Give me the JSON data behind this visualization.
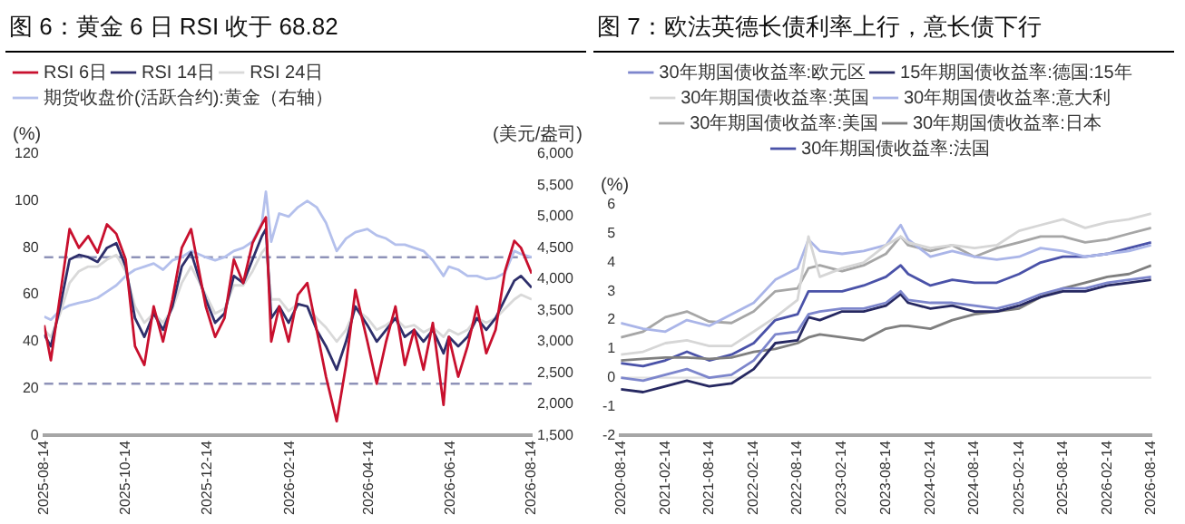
{
  "chart_data": [
    {
      "type": "line",
      "title": "图 6：黄金 6 日 RSI 收于 68.82",
      "ylabel": "(%)",
      "y2label": "(美元/盎司)",
      "x": [
        "2025-08-14",
        "2025-08-19",
        "2025-08-26",
        "2025-09-02",
        "2025-09-09",
        "2025-09-16",
        "2025-09-23",
        "2025-09-30",
        "2025-10-07",
        "2025-10-14",
        "2025-10-21",
        "2025-10-28",
        "2025-11-04",
        "2025-11-11",
        "2025-11-18",
        "2025-11-25",
        "2025-12-02",
        "2025-12-13",
        "2025-12-20",
        "2025-12-27",
        "2026-01-03",
        "2026-01-10",
        "2026-01-17",
        "2026-01-24",
        "2026-01-27",
        "2026-01-31",
        "2026-02-06",
        "2026-02-13",
        "2026-02-20",
        "2026-02-27",
        "2026-03-06",
        "2026-03-13",
        "2026-03-21",
        "2026-03-28",
        "2026-04-04",
        "2026-04-13",
        "2026-04-20",
        "2026-04-27",
        "2026-05-04",
        "2026-05-11",
        "2026-05-18",
        "2026-05-25",
        "2026-06-01",
        "2026-06-09",
        "2026-06-13",
        "2026-06-20",
        "2026-06-27",
        "2026-07-04",
        "2026-07-11",
        "2026-07-18",
        "2026-07-25",
        "2026-08-01",
        "2026-08-06",
        "2026-08-14"
      ],
      "series": [
        {
          "name": "RSI 6日",
          "color": "#c8102e",
          "values": [
            47,
            32,
            60,
            88,
            80,
            85,
            78,
            90,
            86,
            75,
            38,
            30,
            55,
            40,
            58,
            80,
            88,
            55,
            42,
            50,
            75,
            65,
            82,
            90,
            93,
            40,
            55,
            40,
            60,
            65,
            45,
            25,
            6,
            30,
            62,
            40,
            22,
            40,
            55,
            30,
            45,
            28,
            48,
            13,
            42,
            25,
            38,
            55,
            35,
            45,
            70,
            83,
            80,
            69
          ]
        },
        {
          "name": "RSI 14日",
          "color": "#2e2f6b",
          "values": [
            43,
            38,
            55,
            75,
            77,
            76,
            74,
            80,
            82,
            72,
            50,
            42,
            52,
            45,
            55,
            72,
            78,
            58,
            48,
            52,
            68,
            65,
            75,
            85,
            88,
            50,
            55,
            48,
            56,
            55,
            45,
            38,
            28,
            40,
            55,
            47,
            40,
            45,
            50,
            42,
            45,
            40,
            45,
            35,
            42,
            38,
            42,
            50,
            45,
            50,
            58,
            66,
            68,
            63
          ]
        },
        {
          "name": "RSI 24日",
          "color": "#d9d9d9",
          "values": [
            45,
            42,
            52,
            65,
            70,
            72,
            72,
            75,
            77,
            70,
            55,
            48,
            52,
            48,
            54,
            65,
            72,
            60,
            52,
            54,
            64,
            64,
            70,
            78,
            80,
            58,
            58,
            53,
            56,
            55,
            50,
            46,
            40,
            45,
            54,
            50,
            45,
            47,
            50,
            46,
            47,
            44,
            46,
            42,
            45,
            43,
            45,
            50,
            48,
            50,
            54,
            58,
            60,
            58
          ]
        },
        {
          "name": "期货收盘价(活跃合约):黄金（右轴）",
          "color": "#b4c0ec",
          "axis": "y2",
          "values": [
            3400,
            3350,
            3500,
            3580,
            3620,
            3650,
            3700,
            3800,
            3900,
            4050,
            4150,
            4200,
            4250,
            4150,
            4300,
            4350,
            4450,
            4350,
            4300,
            4350,
            4450,
            4500,
            4600,
            4900,
            5400,
            4600,
            5050,
            5000,
            5150,
            5250,
            5150,
            4900,
            4450,
            4650,
            4750,
            4800,
            4700,
            4650,
            4550,
            4550,
            4500,
            4450,
            4300,
            4050,
            4200,
            4150,
            4050,
            4050,
            4000,
            4020,
            4100,
            4450,
            4400,
            4350
          ]
        }
      ],
      "xlim": [
        "2025-08-14",
        "2026-08-14"
      ],
      "xticks": [
        "2025-08-14",
        "2025-10-14",
        "2025-12-14",
        "2026-02-14",
        "2026-04-14",
        "2026-06-14",
        "2026-08-14"
      ],
      "ylim": [
        0,
        120
      ],
      "yticks": [
        0,
        20,
        40,
        60,
        80,
        100,
        120
      ],
      "y2lim": [
        1500,
        6000
      ],
      "y2ticks": [
        {
          "value": 1500,
          "label": "1,500"
        },
        {
          "value": 2000,
          "label": "2,000"
        },
        {
          "value": 2500,
          "label": "2,500"
        },
        {
          "value": 3000,
          "label": "3,000"
        },
        {
          "value": 3500,
          "label": "3,500"
        },
        {
          "value": 4000,
          "label": "4,000"
        },
        {
          "value": 4500,
          "label": "4,500"
        },
        {
          "value": 5000,
          "label": "5,000"
        },
        {
          "value": 5500,
          "label": "5,500"
        },
        {
          "value": 6000,
          "label": "6,000"
        }
      ],
      "ref_lines": [
        {
          "axis": "y",
          "value": 76,
          "color": "#8e92b8",
          "line_style": "dashed"
        },
        {
          "axis": "y",
          "value": 22,
          "color": "#8e92b8",
          "line_style": "dashed"
        }
      ],
      "grid": false,
      "legend": "top left",
      "marker": "none",
      "line_style": "solid"
    },
    {
      "type": "line",
      "title": "图 7：欧法英德长债利率上行，意长债下行",
      "ylabel": "(%)",
      "x": [
        "2020-08-14",
        "2020-11-14",
        "2021-02-14",
        "2021-05-14",
        "2021-08-14",
        "2021-11-14",
        "2022-02-14",
        "2022-05-14",
        "2022-08-14",
        "2022-09-28",
        "2022-11-14",
        "2023-02-14",
        "2023-05-14",
        "2023-08-14",
        "2023-10-14",
        "2023-11-14",
        "2024-02-14",
        "2024-05-14",
        "2024-08-14",
        "2024-11-14",
        "2025-02-14",
        "2025-05-14",
        "2025-08-14",
        "2025-11-14",
        "2026-02-14",
        "2026-05-14",
        "2026-08-14"
      ],
      "series": [
        {
          "name": "30年期国债收益率:欧元区",
          "color": "#7d86cc",
          "values": [
            0.0,
            -0.1,
            0.1,
            0.3,
            0.0,
            0.1,
            0.6,
            1.5,
            1.6,
            2.2,
            2.3,
            2.4,
            2.4,
            2.6,
            3.0,
            2.7,
            2.6,
            2.6,
            2.5,
            2.4,
            2.6,
            2.9,
            3.1,
            3.1,
            3.3,
            3.4,
            3.5
          ]
        },
        {
          "name": "15年期国债收益率:德国:15年",
          "color": "#262861",
          "values": [
            -0.4,
            -0.5,
            -0.3,
            -0.1,
            -0.3,
            -0.2,
            0.3,
            1.2,
            1.3,
            2.1,
            2.0,
            2.3,
            2.3,
            2.5,
            2.9,
            2.6,
            2.4,
            2.5,
            2.3,
            2.3,
            2.5,
            2.8,
            3.0,
            3.0,
            3.2,
            3.3,
            3.4
          ]
        },
        {
          "name": "30年期国债收益率:英国",
          "color": "#d6d6d6",
          "values": [
            0.8,
            0.9,
            1.2,
            1.3,
            1.1,
            1.1,
            1.6,
            2.1,
            2.7,
            4.9,
            3.5,
            3.8,
            4.0,
            4.6,
            4.9,
            4.7,
            4.5,
            4.6,
            4.5,
            4.6,
            5.1,
            5.3,
            5.5,
            5.2,
            5.4,
            5.5,
            5.7
          ]
        },
        {
          "name": "30年期国债收益率:意大利",
          "color": "#aab5e8",
          "values": [
            1.9,
            1.7,
            1.6,
            2.0,
            1.8,
            2.2,
            2.6,
            3.4,
            3.8,
            4.8,
            4.4,
            4.3,
            4.4,
            4.6,
            5.3,
            4.8,
            4.2,
            4.4,
            4.2,
            4.1,
            4.2,
            4.5,
            4.4,
            4.2,
            4.3,
            4.4,
            4.6
          ]
        },
        {
          "name": "30年期国债收益率:美国",
          "color": "#a6a6a6",
          "values": [
            1.4,
            1.6,
            2.1,
            2.3,
            1.95,
            1.9,
            2.3,
            3.0,
            3.1,
            3.8,
            3.9,
            3.7,
            3.9,
            4.3,
            4.9,
            4.6,
            4.4,
            4.6,
            4.2,
            4.5,
            4.7,
            4.9,
            4.9,
            4.7,
            4.8,
            5.0,
            5.2
          ]
        },
        {
          "name": "30年期国债收益率:日本",
          "color": "#7f7f7f",
          "values": [
            0.6,
            0.65,
            0.7,
            0.7,
            0.65,
            0.7,
            0.9,
            1.0,
            1.2,
            1.4,
            1.5,
            1.4,
            1.3,
            1.7,
            1.8,
            1.8,
            1.7,
            2.0,
            2.2,
            2.3,
            2.4,
            2.8,
            3.1,
            3.3,
            3.5,
            3.6,
            3.9
          ]
        },
        {
          "name": "30年期国债收益率:法国",
          "color": "#4a52a8",
          "values": [
            0.5,
            0.4,
            0.6,
            0.9,
            0.6,
            0.8,
            1.2,
            2.0,
            2.2,
            3.0,
            3.0,
            3.0,
            3.2,
            3.5,
            3.9,
            3.6,
            3.2,
            3.4,
            3.3,
            3.3,
            3.6,
            4.0,
            4.2,
            4.2,
            4.3,
            4.5,
            4.7
          ]
        }
      ],
      "xlim": [
        "2020-08-14",
        "2026-08-14"
      ],
      "xticks": [
        "2020-08-14",
        "2021-02-14",
        "2021-08-14",
        "2022-02-14",
        "2022-08-14",
        "2023-02-14",
        "2023-08-14",
        "2024-02-14",
        "2024-08-14",
        "2025-02-14",
        "2025-08-14",
        "2026-02-14",
        "2026-08-14"
      ],
      "ylim": [
        -2,
        6
      ],
      "yticks": [
        -2,
        -1,
        0,
        1,
        2,
        3,
        4,
        5,
        6
      ],
      "ref_lines": [
        {
          "axis": "y",
          "value": 0,
          "color": "#e0e0e0",
          "line_style": "solid"
        }
      ],
      "grid": false,
      "legend": "top",
      "marker": "none",
      "line_style": "solid"
    }
  ]
}
